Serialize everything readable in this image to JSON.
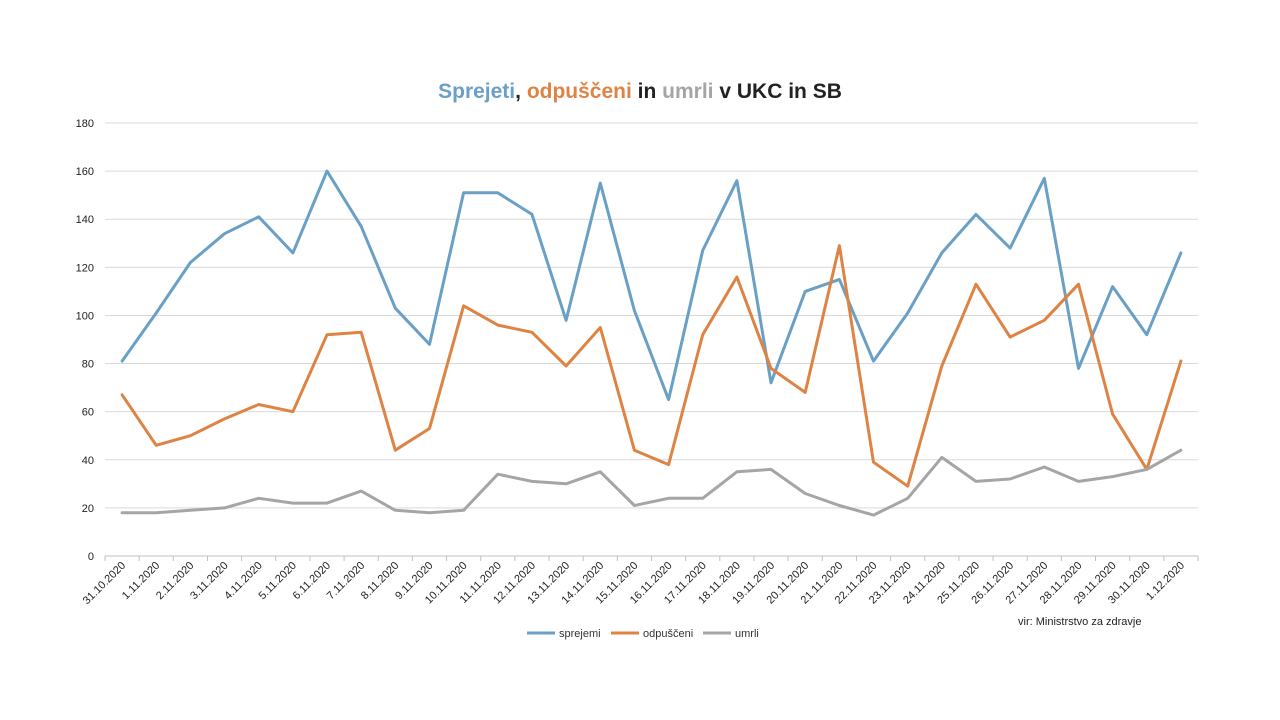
{
  "title": {
    "part1": "Sprejeti",
    "sep1": ", ",
    "part2": "odpuščeni",
    "sep2": " in ",
    "part3": "umrli",
    "part4": " v UKC in SB"
  },
  "source": "vir: Ministrstvo za zdravje",
  "colors": {
    "sprejemi": "#6a9fc6",
    "odpusceni": "#dd8445",
    "umrli": "#a5a5a5",
    "grid": "#d9d9d9",
    "axis": "#bfbfbf"
  },
  "chart_data": {
    "type": "line",
    "categories": [
      "31.10.2020",
      "1.11.2020",
      "2.11.2020",
      "3.11.2020",
      "4.11.2020",
      "5.11.2020",
      "6.11.2020",
      "7.11.2020",
      "8.11.2020",
      "9.11.2020",
      "10.11.2020",
      "11.11.2020",
      "12.11.2020",
      "13.11.2020",
      "14.11.2020",
      "15.11.2020",
      "16.11.2020",
      "17.11.2020",
      "18.11.2020",
      "19.11.2020",
      "20.11.2020",
      "21.11.2020",
      "22.11.2020",
      "23.11.2020",
      "24.11.2020",
      "25.11.2020",
      "26.11.2020",
      "27.11.2020",
      "28.11.2020",
      "29.11.2020",
      "30.11.2020",
      "1.12.2020"
    ],
    "series": [
      {
        "name": "sprejemi",
        "values": [
          81,
          101,
          122,
          134,
          141,
          126,
          160,
          137,
          103,
          88,
          151,
          151,
          142,
          98,
          155,
          102,
          65,
          127,
          156,
          72,
          110,
          115,
          81,
          101,
          126,
          142,
          128,
          157,
          78,
          112,
          92,
          126
        ]
      },
      {
        "name": "odpuščeni",
        "values": [
          67,
          46,
          50,
          57,
          63,
          60,
          92,
          93,
          44,
          53,
          104,
          96,
          93,
          79,
          95,
          44,
          38,
          92,
          116,
          78,
          68,
          129,
          39,
          29,
          79,
          113,
          91,
          98,
          113,
          59,
          36,
          81
        ]
      },
      {
        "name": "umrli",
        "values": [
          18,
          18,
          19,
          20,
          24,
          22,
          22,
          27,
          19,
          18,
          19,
          34,
          31,
          30,
          35,
          21,
          24,
          24,
          35,
          36,
          26,
          21,
          17,
          24,
          41,
          31,
          32,
          37,
          31,
          33,
          36,
          44
        ]
      }
    ],
    "ylim": [
      0,
      180
    ],
    "yticks": [
      0,
      20,
      40,
      60,
      80,
      100,
      120,
      140,
      160,
      180
    ],
    "grid": true,
    "legend": "bottom"
  }
}
